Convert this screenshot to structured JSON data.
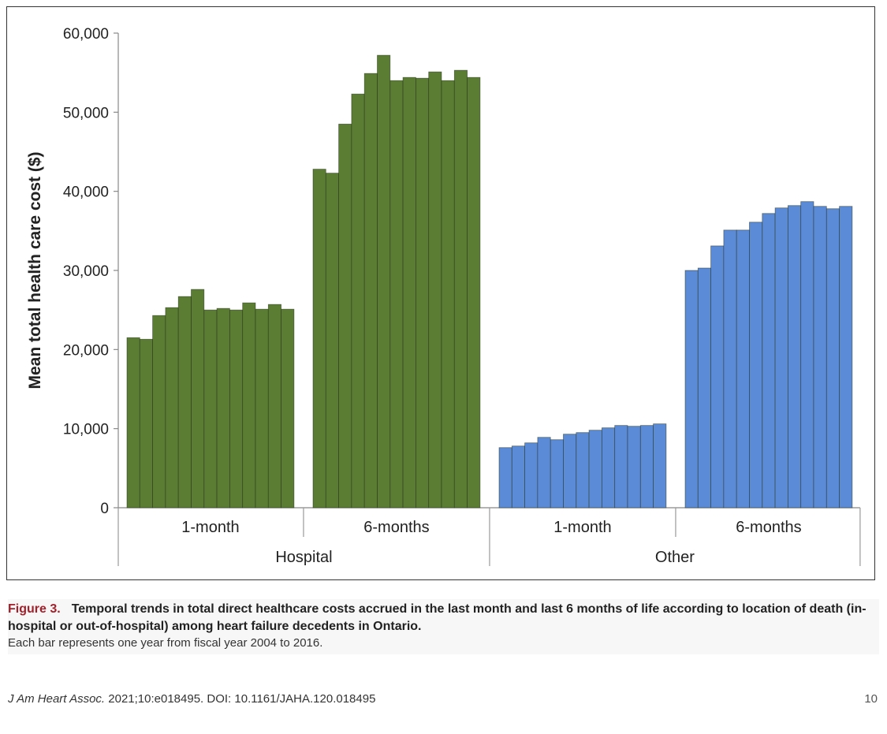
{
  "chart_data": {
    "type": "bar",
    "ylabel": "Mean total health care cost ($)",
    "ylim": [
      0,
      60000
    ],
    "yticks": [
      "0",
      "10,000",
      "20,000",
      "30,000",
      "40,000",
      "50,000",
      "60,000"
    ],
    "yticks_values": [
      0,
      10000,
      20000,
      30000,
      40000,
      50000,
      60000
    ],
    "grid": false,
    "groups": [
      {
        "location": "Hospital",
        "color": "#5a7d33",
        "subgroups": [
          {
            "label": "1-month",
            "values": [
              21500,
              21300,
              24300,
              25300,
              26700,
              27600,
              25000,
              25200,
              25000,
              25900,
              25100,
              25700,
              25100
            ]
          },
          {
            "label": "6-months",
            "values": [
              42800,
              42300,
              48500,
              52300,
              54900,
              57200,
              54000,
              54400,
              54300,
              55100,
              54000,
              55300,
              54400
            ]
          }
        ]
      },
      {
        "location": "Other",
        "color": "#5b8bd6",
        "subgroups": [
          {
            "label": "1-month",
            "values": [
              7600,
              7800,
              8200,
              8900,
              8600,
              9300,
              9500,
              9800,
              10100,
              10400,
              10300,
              10400,
              10600
            ]
          },
          {
            "label": "6-months",
            "values": [
              30000,
              30300,
              33100,
              35100,
              35100,
              36100,
              37200,
              37900,
              38200,
              38700,
              38100,
              37800,
              38100
            ]
          }
        ]
      }
    ]
  },
  "caption": {
    "label": "Figure 3.",
    "title": "Temporal trends in total direct healthcare costs accrued in the last month and last 6 months of life according to location of death (in-hospital or out-of-hospital) among heart failure decedents in Ontario.",
    "note": "Each bar represents one year from fiscal year 2004 to 2016."
  },
  "footer": {
    "journal": "J Am Heart Assoc.",
    "citation": " 2021;10:e018495. DOI: 10.1161/JAHA.120.018495",
    "page": "10"
  }
}
